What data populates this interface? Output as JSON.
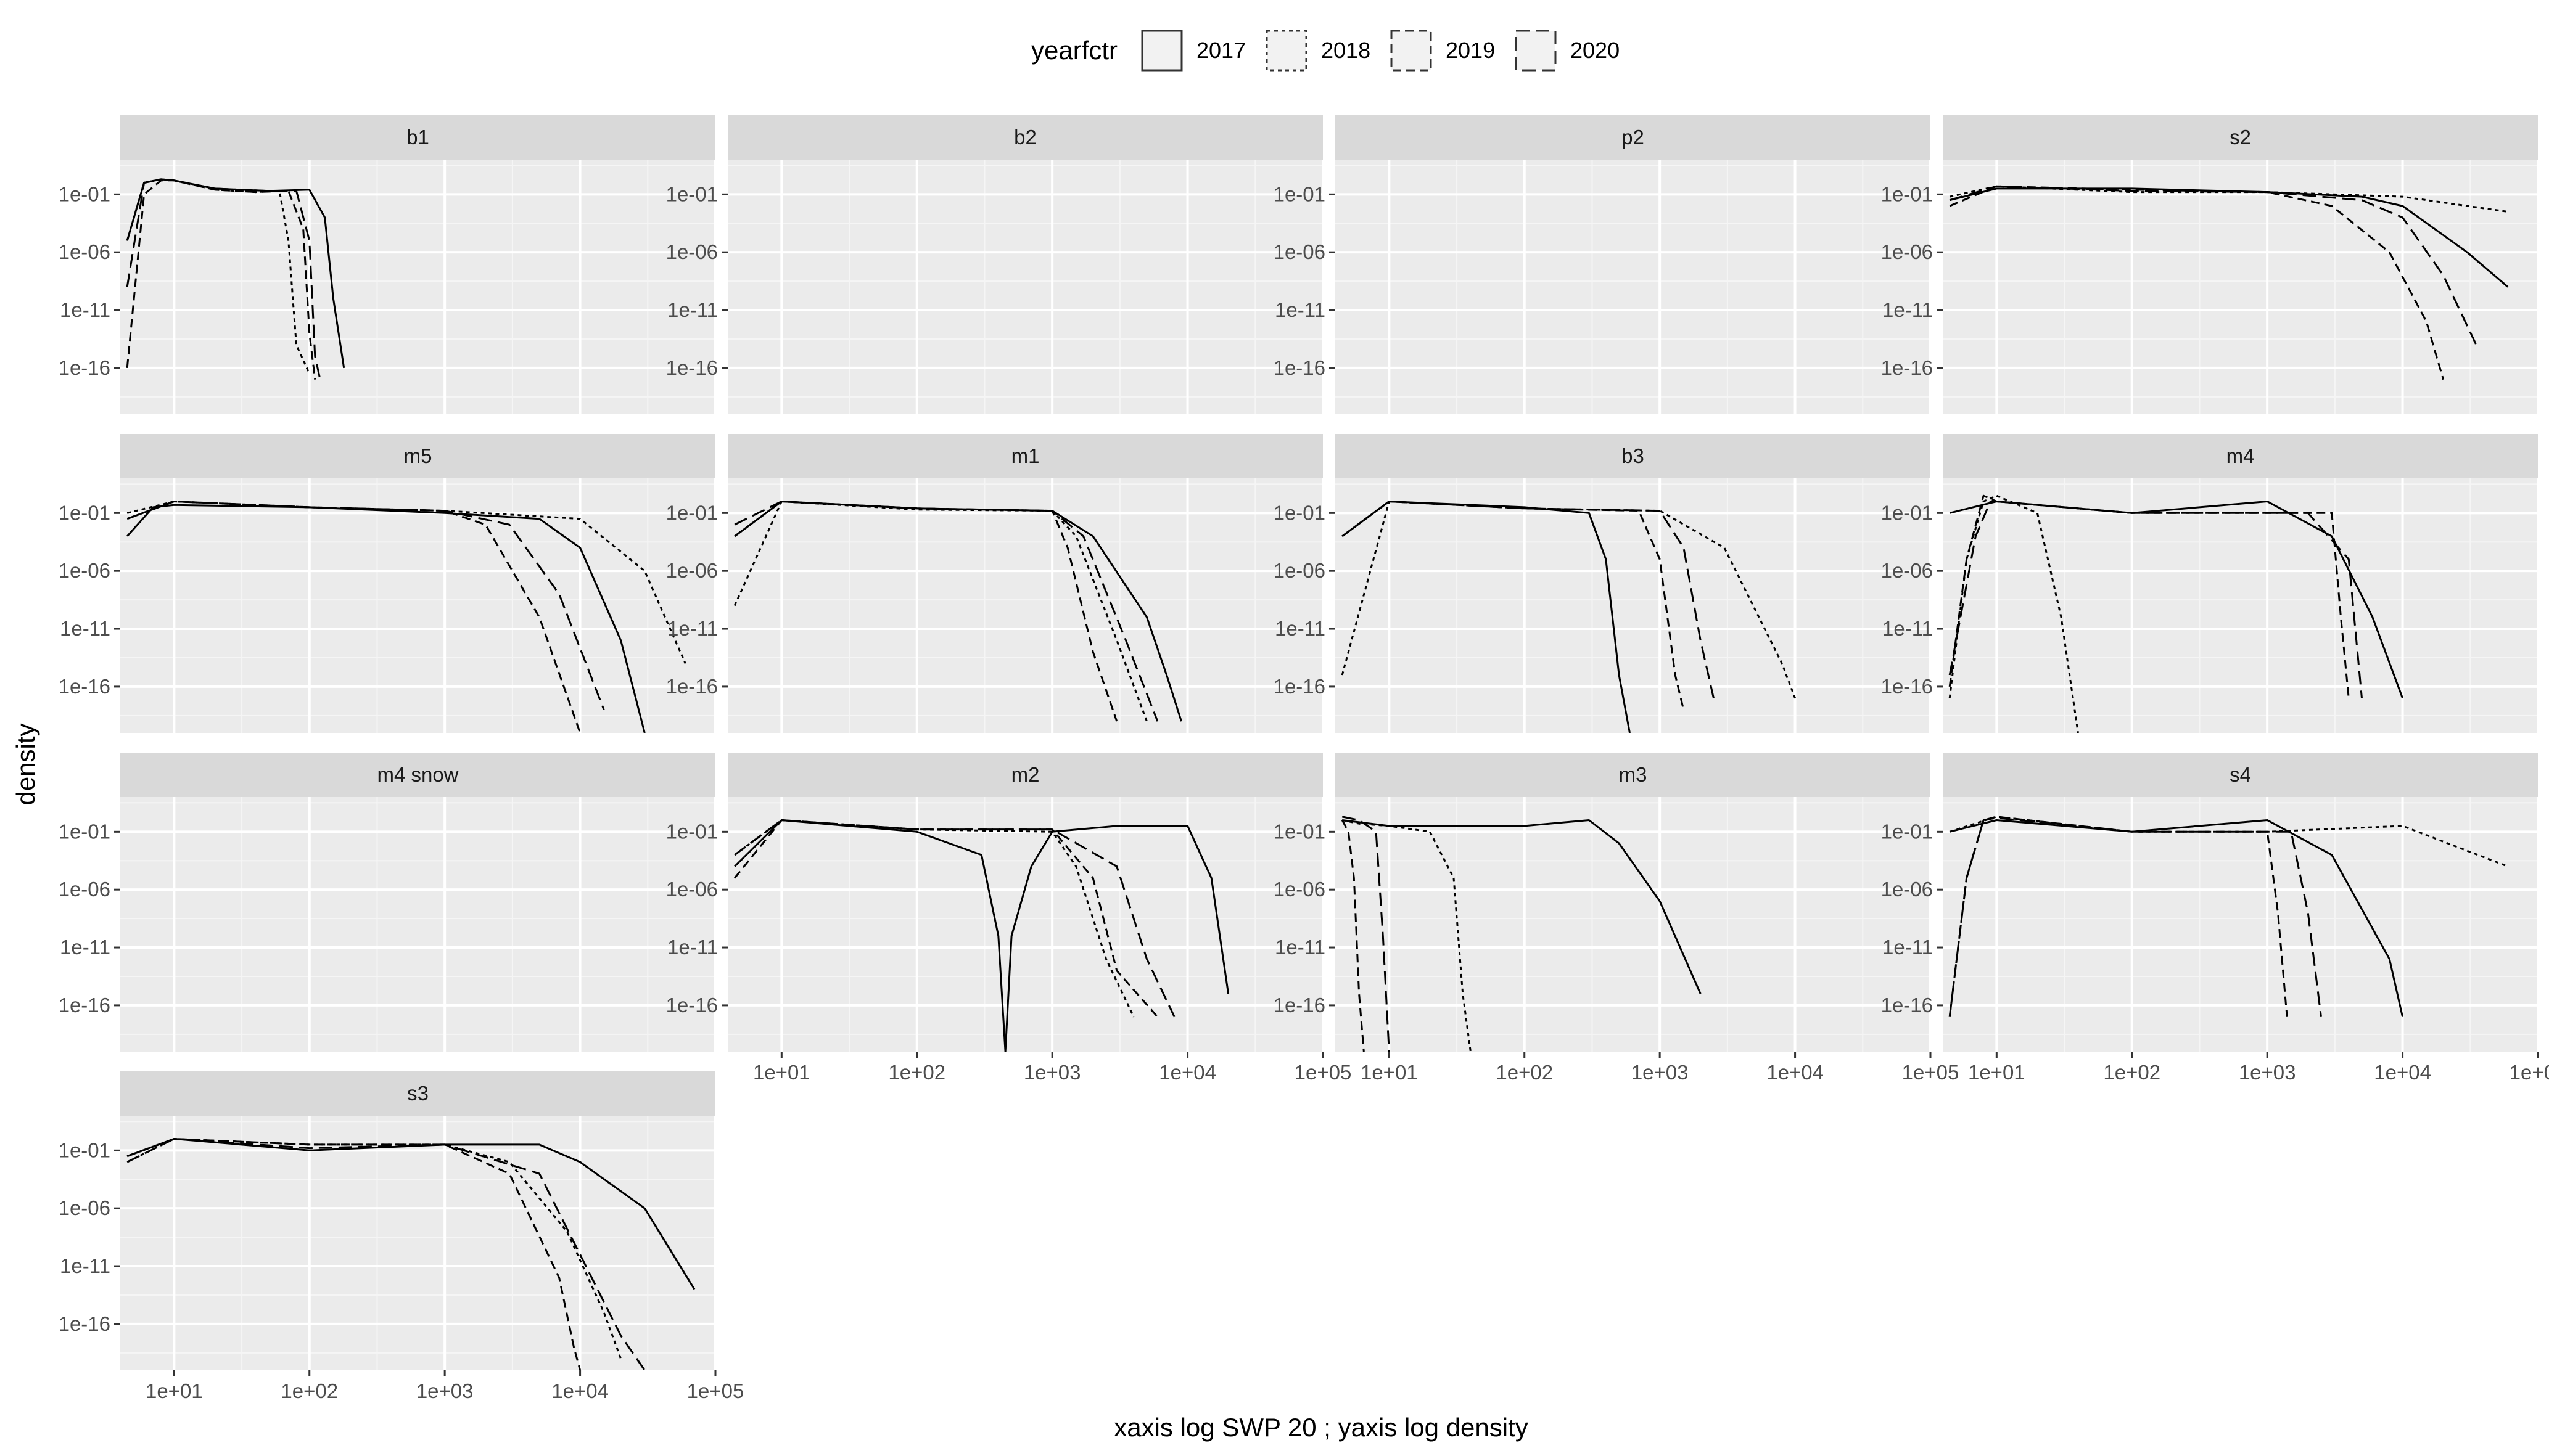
{
  "chart_data": {
    "type": "line",
    "title": "",
    "xlabel": "xaxis log SWP 20 ; yaxis log density",
    "ylabel": "density",
    "x_scale": "log10",
    "y_scale": "log10",
    "xlim": [
      4,
      100000
    ],
    "ylim": [
      1e-20,
      100.0
    ],
    "x_ticks": [
      10,
      100,
      1000,
      10000,
      100000
    ],
    "x_tick_labels": [
      "1e+01",
      "1e+02",
      "1e+03",
      "1e+04",
      "1e+05"
    ],
    "y_ticks": [
      0.1,
      1e-06,
      1e-11,
      1e-16
    ],
    "y_tick_labels": [
      "1e-01",
      "1e-06",
      "1e-11",
      "1e-16"
    ],
    "grid": true,
    "legend": {
      "title": "yearfctr",
      "position": "top",
      "entries": [
        {
          "label": "2017",
          "dash": "solid"
        },
        {
          "label": "2018",
          "dash": "dotted"
        },
        {
          "label": "2019",
          "dash": "dashed"
        },
        {
          "label": "2020",
          "dash": "longdash"
        }
      ]
    },
    "panels": [
      {
        "name": "b1",
        "series": [
          {
            "name": "2017",
            "x": [
              4.5,
              6,
              8,
              10,
              20,
              50,
              100,
              130,
              150,
              180
            ],
            "y": [
              -5,
              0,
              0.3,
              0.2,
              -0.5,
              -0.7,
              -0.6,
              -3,
              -10,
              -16
            ]
          },
          {
            "name": "2018",
            "x": [
              4.5,
              6,
              8,
              10,
              20,
              40,
              60,
              70,
              80,
              100
            ],
            "y": [
              -5,
              0,
              0.3,
              0.2,
              -0.6,
              -0.8,
              -0.7,
              -5,
              -14,
              -16.5
            ]
          },
          {
            "name": "2019",
            "x": [
              4.5,
              6,
              8,
              10,
              20,
              40,
              70,
              90,
              100,
              110
            ],
            "y": [
              -16,
              -1,
              0.2,
              0.2,
              -0.6,
              -0.8,
              -0.7,
              -4,
              -13,
              -17
            ]
          },
          {
            "name": "2020",
            "x": [
              4.5,
              6,
              8,
              10,
              20,
              50,
              80,
              100,
              110,
              120
            ],
            "y": [
              -9,
              0,
              0.3,
              0.2,
              -0.5,
              -0.7,
              -0.7,
              -5,
              -15,
              -17
            ]
          }
        ]
      },
      {
        "name": "b2",
        "series": []
      },
      {
        "name": "p2",
        "series": []
      },
      {
        "name": "s2",
        "series": [
          {
            "name": "2017",
            "x": [
              4.5,
              10,
              100,
              1000,
              5000,
              10000,
              30000,
              60000
            ],
            "y": [
              -1.5,
              -0.5,
              -0.5,
              -0.8,
              -1.2,
              -2,
              -6,
              -9
            ]
          },
          {
            "name": "2018",
            "x": [
              4.5,
              10,
              100,
              1000,
              10000,
              60000
            ],
            "y": [
              -1.2,
              -0.3,
              -0.8,
              -0.8,
              -1.2,
              -2.5
            ]
          },
          {
            "name": "2019",
            "x": [
              4.5,
              10,
              100,
              1000,
              3000,
              8000,
              15000,
              20000
            ],
            "y": [
              -2,
              -0.3,
              -0.6,
              -0.8,
              -2,
              -6,
              -12,
              -17
            ]
          },
          {
            "name": "2020",
            "x": [
              4.5,
              10,
              100,
              1000,
              5000,
              10000,
              20000,
              35000
            ],
            "y": [
              -1.5,
              -0.3,
              -0.7,
              -0.8,
              -1.5,
              -3,
              -8,
              -14
            ]
          }
        ]
      },
      {
        "name": "m5",
        "series": [
          {
            "name": "2017",
            "x": [
              4.5,
              7,
              10,
              100,
              1000,
              5000,
              10000,
              20000,
              30000
            ],
            "y": [
              -3,
              -0.5,
              -0.3,
              -0.5,
              -1,
              -1.5,
              -4,
              -12,
              -20
            ]
          },
          {
            "name": "2018",
            "x": [
              4.5,
              10,
              100,
              1000,
              10000,
              30000,
              60000
            ],
            "y": [
              -1,
              0,
              -0.5,
              -0.8,
              -1.5,
              -6,
              -14
            ]
          },
          {
            "name": "2019",
            "x": [
              4.5,
              10,
              100,
              1000,
              2000,
              5000,
              10000
            ],
            "y": [
              -1.5,
              0,
              -0.5,
              -0.8,
              -2,
              -10,
              -20
            ]
          },
          {
            "name": "2020",
            "x": [
              4.5,
              10,
              100,
              1000,
              3000,
              7000,
              15000
            ],
            "y": [
              -1.5,
              0,
              -0.5,
              -0.8,
              -2,
              -8,
              -18
            ]
          }
        ]
      },
      {
        "name": "m1",
        "series": [
          {
            "name": "2017",
            "x": [
              4.5,
              10,
              100,
              1000,
              2000,
              5000,
              7000,
              9000
            ],
            "y": [
              -3,
              0,
              -0.6,
              -0.8,
              -3,
              -10,
              -15,
              -19
            ]
          },
          {
            "name": "2018",
            "x": [
              4.5,
              10,
              100,
              1000,
              1500,
              3000,
              5000
            ],
            "y": [
              -9,
              0,
              -0.7,
              -0.8,
              -3,
              -12,
              -19
            ]
          },
          {
            "name": "2019",
            "x": [
              4.5,
              10,
              100,
              1000,
              1300,
              2000,
              3000
            ],
            "y": [
              -3,
              0,
              -0.6,
              -0.8,
              -4,
              -13,
              -19
            ]
          },
          {
            "name": "2020",
            "x": [
              4.5,
              10,
              100,
              1000,
              1700,
              3500,
              6000
            ],
            "y": [
              -2,
              0,
              -0.6,
              -0.8,
              -3,
              -12,
              -19
            ]
          }
        ]
      },
      {
        "name": "b3",
        "series": [
          {
            "name": "2017",
            "x": [
              4.5,
              10,
              100,
              300,
              400,
              500,
              600
            ],
            "y": [
              -3,
              0,
              -0.5,
              -1,
              -5,
              -15,
              -20
            ]
          },
          {
            "name": "2018",
            "x": [
              4.5,
              10,
              100,
              1000,
              3000,
              8000,
              10000
            ],
            "y": [
              -15,
              0,
              -0.6,
              -0.8,
              -4,
              -14,
              -17
            ]
          },
          {
            "name": "2019",
            "x": [
              4.5,
              10,
              100,
              700,
              1000,
              1300,
              1500
            ],
            "y": [
              -3,
              0,
              -0.6,
              -0.8,
              -5,
              -15,
              -18
            ]
          },
          {
            "name": "2020",
            "x": [
              4.5,
              10,
              100,
              1000,
              1500,
              2000,
              2500
            ],
            "y": [
              -3,
              0,
              -0.6,
              -0.8,
              -4,
              -12,
              -17
            ]
          }
        ]
      },
      {
        "name": "m4",
        "series": [
          {
            "name": "2017",
            "x": [
              4.5,
              10,
              100,
              1000,
              3000,
              6000,
              10000
            ],
            "y": [
              -1,
              0,
              -1,
              0,
              -3,
              -10,
              -17
            ]
          },
          {
            "name": "2018",
            "x": [
              4.5,
              6,
              8,
              10,
              20,
              30,
              40
            ],
            "y": [
              -17,
              -5,
              0,
              0.5,
              -1,
              -10,
              -20
            ]
          },
          {
            "name": "2019",
            "x": [
              4.5,
              6,
              8,
              10,
              100,
              3000,
              3500,
              4000
            ],
            "y": [
              -16,
              -5,
              0.5,
              0,
              -1,
              -1,
              -10,
              -17
            ]
          },
          {
            "name": "2020",
            "x": [
              4.5,
              7,
              9,
              10,
              100,
              2000,
              4000,
              5000
            ],
            "y": [
              -15,
              -3,
              0,
              0,
              -1,
              -1,
              -5,
              -17
            ]
          }
        ]
      },
      {
        "name": "m4 snow",
        "series": []
      },
      {
        "name": "m2",
        "series": [
          {
            "name": "2017",
            "x": [
              4.5,
              10,
              100,
              300,
              400,
              450,
              500,
              700,
              1000,
              3000,
              10000,
              15000,
              20000
            ],
            "y": [
              -4,
              0,
              -1,
              -3,
              -10,
              -20,
              -10,
              -4,
              -1,
              -0.5,
              -0.5,
              -5,
              -15
            ]
          },
          {
            "name": "2018",
            "x": [
              4.5,
              10,
              100,
              1000,
              1500,
              2500,
              4000
            ],
            "y": [
              -3,
              0,
              -0.8,
              -1,
              -4,
              -12,
              -17
            ]
          },
          {
            "name": "2019",
            "x": [
              4.5,
              10,
              100,
              1000,
              2000,
              3000,
              6000
            ],
            "y": [
              -5,
              0,
              -0.8,
              -0.8,
              -5,
              -13,
              -17
            ]
          },
          {
            "name": "2020",
            "x": [
              4.5,
              10,
              100,
              1000,
              3000,
              5000,
              8000
            ],
            "y": [
              -3,
              0,
              -0.8,
              -0.8,
              -4,
              -12,
              -17
            ]
          }
        ]
      },
      {
        "name": "m3",
        "series": [
          {
            "name": "2017",
            "x": [
              4.5,
              10,
              50,
              100,
              300,
              500,
              1000,
              2000
            ],
            "y": [
              0,
              -0.5,
              -0.5,
              -0.5,
              0,
              -2,
              -7,
              -15
            ]
          },
          {
            "name": "2018",
            "x": [
              4.5,
              6,
              10,
              20,
              30,
              35,
              40
            ],
            "y": [
              0,
              -0.3,
              -0.5,
              -1,
              -5,
              -15,
              -20
            ]
          },
          {
            "name": "2019",
            "x": [
              4.5,
              5,
              5.5,
              6,
              6.5
            ],
            "y": [
              0,
              -1,
              -5,
              -15,
              -20
            ]
          },
          {
            "name": "2020",
            "x": [
              4.5,
              6,
              8,
              9,
              10
            ],
            "y": [
              0.3,
              0,
              -1,
              -10,
              -20
            ]
          }
        ]
      },
      {
        "name": "s4",
        "series": [
          {
            "name": "2017",
            "x": [
              4.5,
              10,
              100,
              1000,
              3000,
              8000,
              10000
            ],
            "y": [
              -1,
              0,
              -1,
              0,
              -3,
              -12,
              -17
            ]
          },
          {
            "name": "2018",
            "x": [
              4.5,
              10,
              100,
              1000,
              10000,
              60000
            ],
            "y": [
              -1,
              0.3,
              -1,
              -1,
              -0.5,
              -4
            ]
          },
          {
            "name": "2019",
            "x": [
              4.5,
              6,
              8,
              10,
              100,
              1000,
              1200,
              1400
            ],
            "y": [
              -17,
              -5,
              0,
              0.3,
              -1,
              -1,
              -8,
              -17
            ]
          },
          {
            "name": "2020",
            "x": [
              4.5,
              6,
              8,
              10,
              100,
              1500,
              2000,
              2500
            ],
            "y": [
              -17,
              -5,
              0,
              0.2,
              -1,
              -1,
              -8,
              -17
            ]
          }
        ]
      },
      {
        "name": "s3",
        "series": [
          {
            "name": "2017",
            "x": [
              4.5,
              10,
              100,
              1000,
              5000,
              10000,
              30000,
              70000
            ],
            "y": [
              -1.5,
              0,
              -1,
              -0.5,
              -0.5,
              -2,
              -6,
              -13
            ]
          },
          {
            "name": "2018",
            "x": [
              4.5,
              10,
              100,
              1000,
              3000,
              8000,
              15000,
              20000
            ],
            "y": [
              -2,
              0,
              -0.5,
              -0.5,
              -2,
              -8,
              -15,
              -19
            ]
          },
          {
            "name": "2019",
            "x": [
              4.5,
              10,
              100,
              1000,
              3000,
              7000,
              9000,
              10000
            ],
            "y": [
              -1.5,
              0,
              -0.5,
              -0.5,
              -3,
              -12,
              -18,
              -20
            ]
          },
          {
            "name": "2020",
            "x": [
              4.5,
              10,
              100,
              1000,
              5000,
              10000,
              20000,
              30000
            ],
            "y": [
              -2,
              0,
              -0.8,
              -0.5,
              -3,
              -10,
              -17,
              -20
            ]
          }
        ]
      }
    ]
  }
}
